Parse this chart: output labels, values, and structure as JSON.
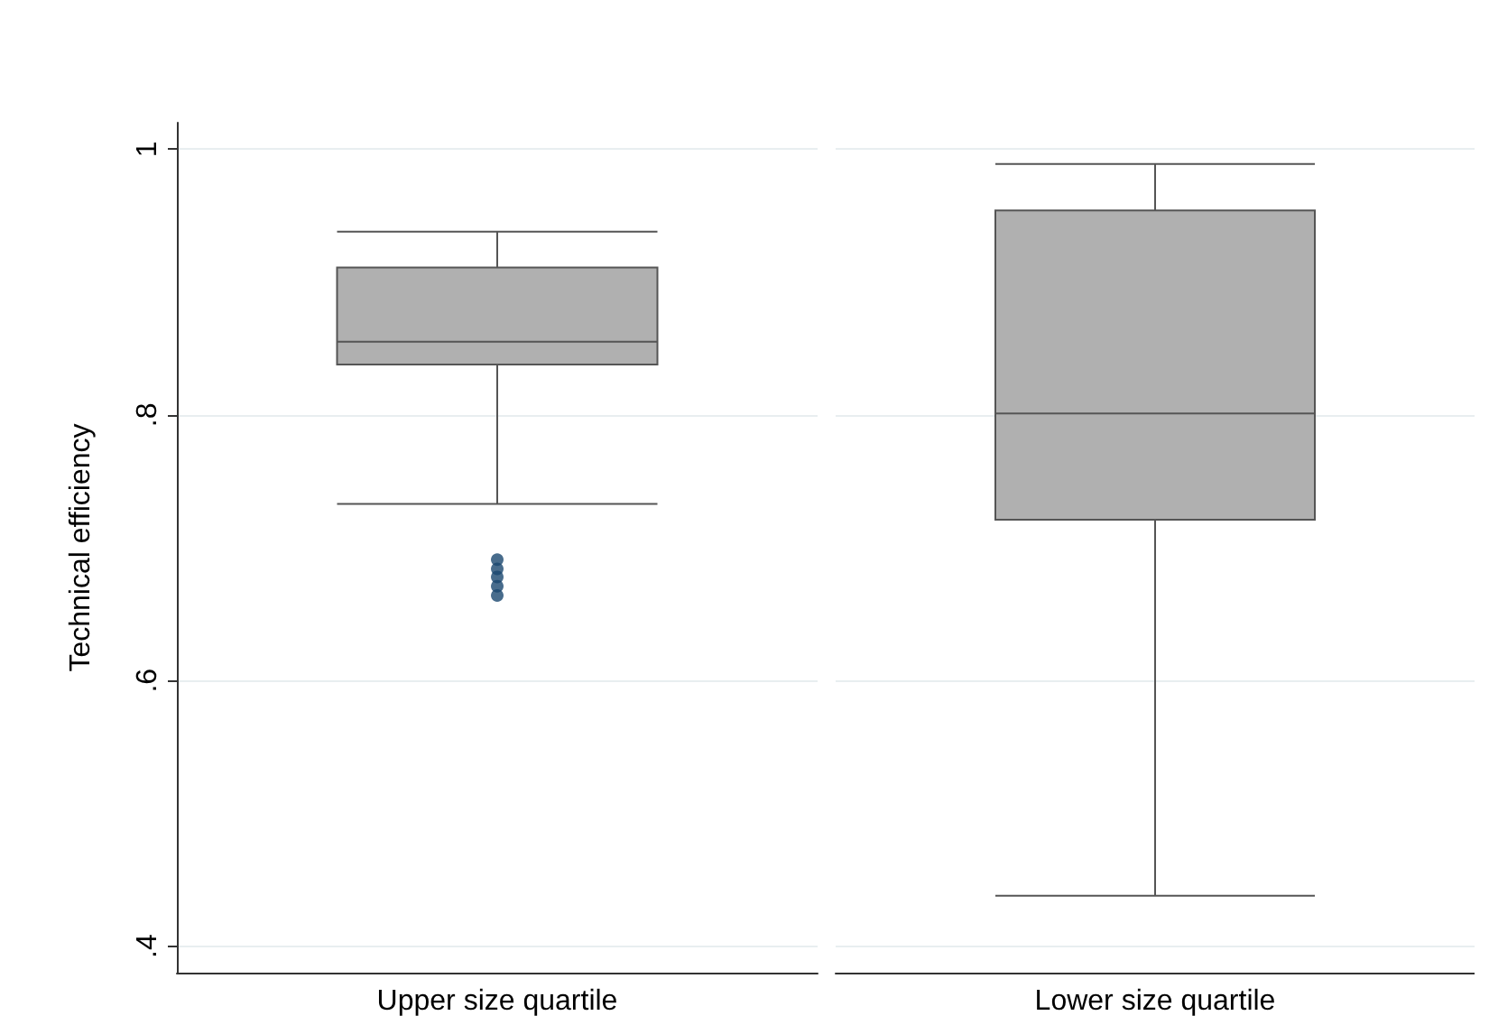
{
  "chart_data": {
    "type": "box",
    "ylabel": "Technical efficiency",
    "categories": [
      "Upper size quartile",
      "Lower size quartile"
    ],
    "boxes": [
      {
        "low": 0.733,
        "q1": 0.838,
        "median": 0.855,
        "q3": 0.911,
        "high": 0.938
      },
      {
        "low": 0.438,
        "q1": 0.721,
        "median": 0.801,
        "q3": 0.954,
        "high": 0.989
      }
    ],
    "color": "#b0b0b0",
    "series": [
      {
        "type": "scatter",
        "color": "#1a476f",
        "x": [
          "Upper size quartile",
          "Upper size quartile",
          "Upper size quartile",
          "Upper size quartile",
          "Upper size quartile"
        ],
        "values": [
          0.691,
          0.684,
          0.678,
          0.671,
          0.664
        ]
      }
    ],
    "ylim": [
      0.38,
      1.02
    ],
    "yticks": [
      {
        "value": 0.4,
        "label": ".4"
      },
      {
        "value": 0.6,
        "label": ".6"
      },
      {
        "value": 0.8,
        "label": ".8"
      },
      {
        "value": 1,
        "label": "1"
      }
    ],
    "grid": "y"
  }
}
